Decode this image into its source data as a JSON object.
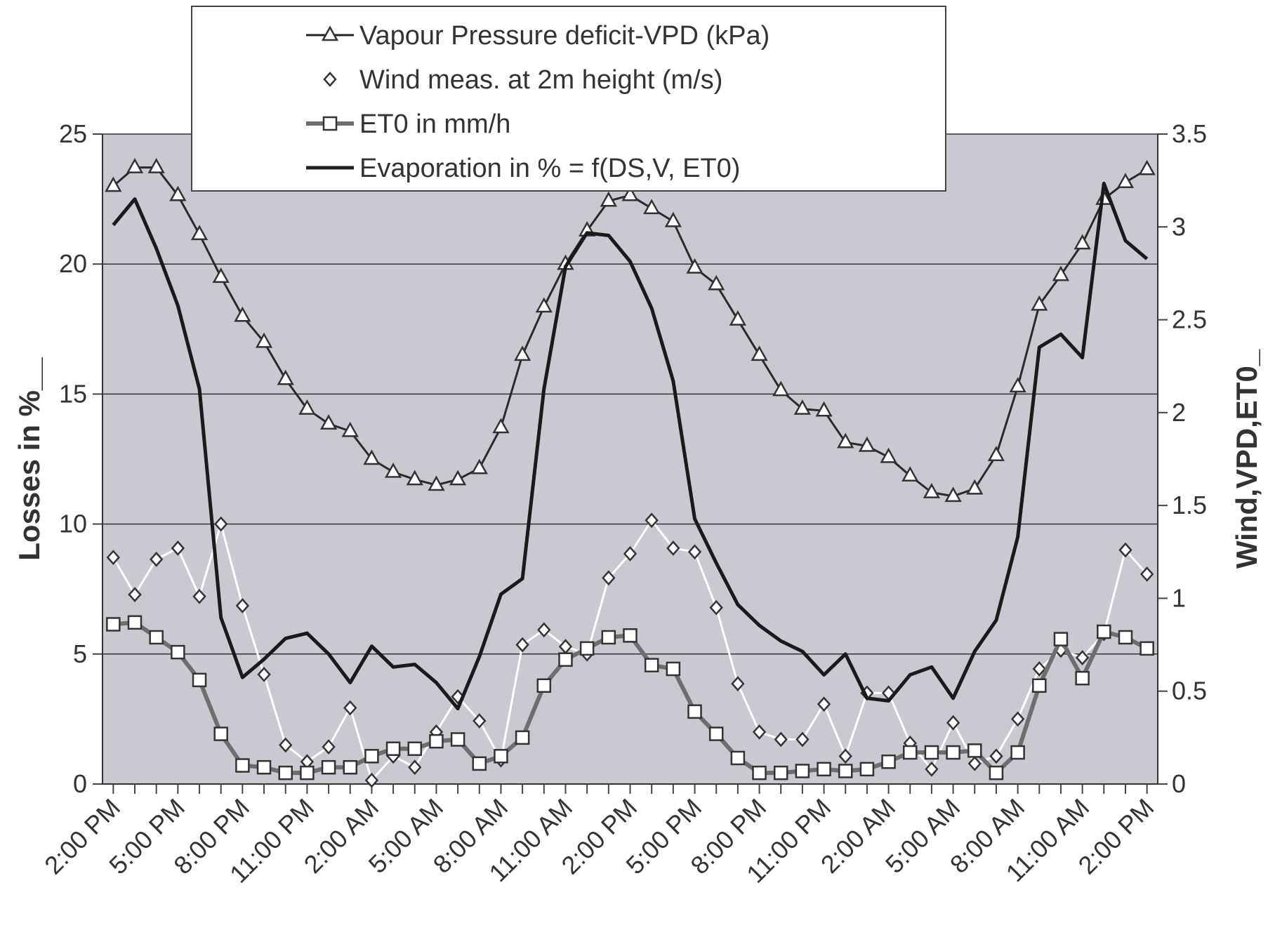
{
  "chart_data": {
    "type": "line",
    "y_label": "Losses in %__",
    "y2_label": "Wind,VPD,ET0_",
    "categories": [
      "2:00 PM",
      null,
      null,
      "5:00 PM",
      null,
      null,
      "8:00 PM",
      null,
      null,
      "11:00 PM",
      null,
      null,
      "2:00 AM",
      null,
      null,
      "5:00 AM",
      null,
      null,
      "8:00 AM",
      null,
      null,
      "11:00 AM",
      null,
      null,
      "2:00 PM",
      null,
      null,
      "5:00 PM",
      null,
      null,
      "8:00 PM",
      null,
      null,
      "11:00 PM",
      null,
      null,
      "2:00 AM",
      null,
      null,
      "5:00 AM",
      null,
      null,
      "8:00 AM",
      null,
      null,
      "11:00 AM",
      null,
      null,
      "2:00 PM"
    ],
    "ylim": [
      0,
      25
    ],
    "yticks": [
      0,
      5,
      10,
      15,
      20,
      25
    ],
    "y2lim": [
      0,
      3.5
    ],
    "y2ticks": [
      0,
      0.5,
      1,
      1.5,
      2,
      2.5,
      3,
      3.5
    ],
    "grid": true,
    "background": "#c9c9d1",
    "series": [
      {
        "name": "Vapour Pressure deficit-VPD (kPa)",
        "axis": "y2",
        "color": "#2a2a2a",
        "marker": "triangle",
        "values": [
          3.22,
          3.32,
          3.32,
          3.17,
          2.96,
          2.73,
          2.52,
          2.38,
          2.18,
          2.02,
          1.94,
          1.9,
          1.75,
          1.68,
          1.64,
          1.61,
          1.64,
          1.7,
          1.92,
          2.31,
          2.57,
          2.8,
          2.98,
          3.14,
          3.17,
          3.1,
          3.03,
          2.78,
          2.69,
          2.5,
          2.31,
          2.12,
          2.02,
          2.01,
          1.84,
          1.82,
          1.76,
          1.66,
          1.57,
          1.55,
          1.59,
          1.77,
          2.14,
          2.58,
          2.74,
          2.91,
          3.15,
          3.24,
          3.31
        ]
      },
      {
        "name": "Wind meas. at 2m height (m/s)",
        "axis": "y2",
        "color": "#ffffff",
        "marker": "diamond",
        "values": [
          1.22,
          1.02,
          1.21,
          1.27,
          1.01,
          1.4,
          0.96,
          0.59,
          0.21,
          0.12,
          0.2,
          0.41,
          0.02,
          0.15,
          0.09,
          0.28,
          0.47,
          0.34,
          0.13,
          0.75,
          0.83,
          0.74,
          0.7,
          1.11,
          1.24,
          1.42,
          1.27,
          1.25,
          0.95,
          0.54,
          0.28,
          0.24,
          0.24,
          0.43,
          0.15,
          0.49,
          0.49,
          0.22,
          0.08,
          0.33,
          0.11,
          0.15,
          0.35,
          0.62,
          0.72,
          0.68,
          0.81,
          1.26,
          1.13
        ]
      },
      {
        "name": "ET0 in mm/h",
        "axis": "y2",
        "color": "#6e6e6e",
        "marker": "square",
        "values": [
          0.86,
          0.87,
          0.79,
          0.71,
          0.56,
          0.27,
          0.1,
          0.09,
          0.06,
          0.06,
          0.09,
          0.09,
          0.15,
          0.19,
          0.19,
          0.23,
          0.24,
          0.11,
          0.15,
          0.25,
          0.53,
          0.67,
          0.73,
          0.79,
          0.8,
          0.64,
          0.62,
          0.39,
          0.27,
          0.14,
          0.06,
          0.06,
          0.07,
          0.08,
          0.07,
          0.08,
          0.12,
          0.17,
          0.17,
          0.17,
          0.18,
          0.06,
          0.17,
          0.53,
          0.78,
          0.57,
          0.82,
          0.79,
          0.73
        ]
      },
      {
        "name": "Evaporation in % = f(DS,V, ET0)",
        "axis": "y",
        "color": "#1a1a1a",
        "marker": "none",
        "values": [
          21.5,
          22.5,
          20.6,
          18.4,
          15.2,
          6.4,
          4.1,
          4.8,
          5.6,
          5.8,
          5.0,
          3.9,
          5.3,
          4.5,
          4.6,
          3.9,
          2.9,
          4.9,
          7.3,
          7.9,
          15.2,
          19.9,
          21.2,
          21.1,
          20.1,
          18.3,
          15.5,
          10.2,
          8.5,
          6.9,
          6.1,
          5.5,
          5.1,
          4.2,
          5.0,
          3.3,
          3.2,
          4.2,
          4.5,
          3.3,
          5.1,
          6.3,
          9.5,
          16.8,
          17.3,
          16.4,
          23.1,
          20.9,
          20.2
        ]
      }
    ]
  }
}
